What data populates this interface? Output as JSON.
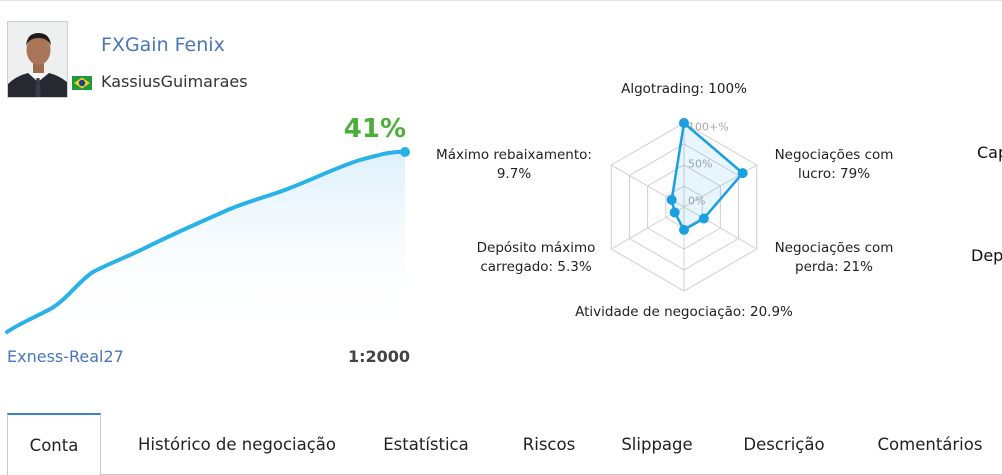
{
  "profile": {
    "signal_name": "FXGain Fenix",
    "author": "KassiusGuimaraes",
    "flag_icon": "brazil-flag-icon",
    "avatar_icon": "avatar-photo"
  },
  "growth": {
    "value_label": "41%",
    "line_color": "#29b2e8",
    "value_color": "#4caf3c"
  },
  "account": {
    "server": "Exness-Real27",
    "leverage": "1:2000"
  },
  "radar": {
    "axes": [
      {
        "label_lines": [
          "Algotrading: 100%"
        ],
        "value": 100
      },
      {
        "label_lines": [
          "Negociações com",
          "lucro: 79%"
        ],
        "value": 79
      },
      {
        "label_lines": [
          "Negociações com",
          "perda: 21%"
        ],
        "value": 21
      },
      {
        "label_lines": [
          "Atividade de negociação: 20.9%"
        ],
        "value": 20.9
      },
      {
        "label_lines": [
          "Depósito máximo",
          "carregado: 5.3%"
        ],
        "value": 5.3
      },
      {
        "label_lines": [
          "Máximo rebaixamento:",
          "9.7%"
        ],
        "value": 9.7
      }
    ],
    "ticks": [
      "100+%",
      "50%",
      "0%"
    ],
    "series_color": "#1a9fe0"
  },
  "right_cut": {
    "text_1": "Cap",
    "text_2": "Dep"
  },
  "tabs": [
    {
      "label": "Conta",
      "active": true
    },
    {
      "label": "Histórico de negociação",
      "active": false
    },
    {
      "label": "Estatística",
      "active": false
    },
    {
      "label": "Riscos",
      "active": false
    },
    {
      "label": "Slippage",
      "active": false
    },
    {
      "label": "Descrição",
      "active": false
    },
    {
      "label": "Comentários",
      "active": false
    }
  ]
}
